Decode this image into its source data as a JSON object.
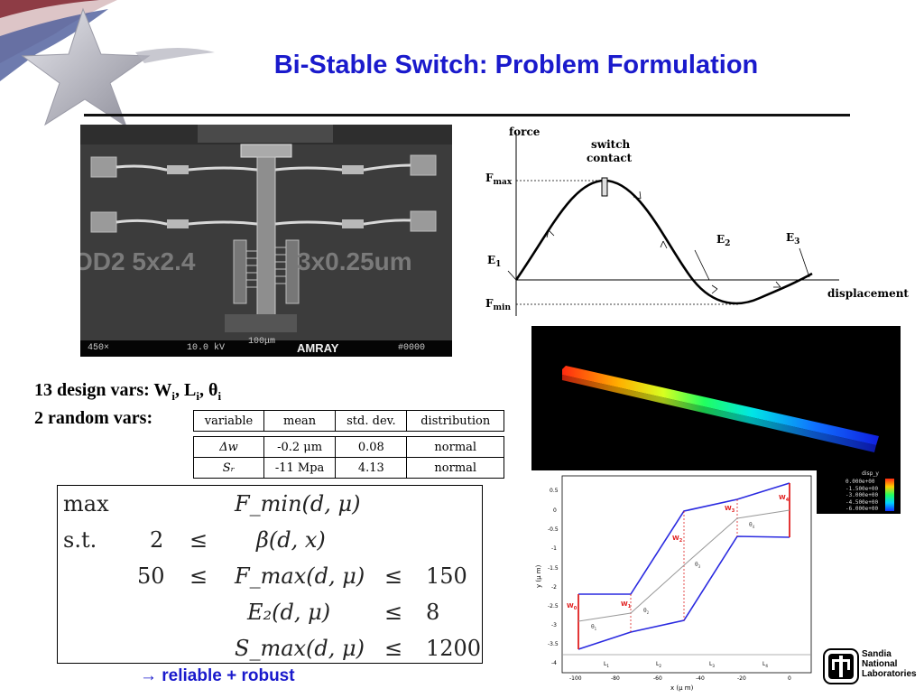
{
  "slide": {
    "title": "Bi-Stable Switch: Problem Formulation",
    "accent_color": "#1a1acc"
  },
  "sem_image": {
    "overlay_left": "OD2 5x2.4",
    "overlay_right": "3x0.25um",
    "magnification": "450×",
    "voltage": "10.0 kV",
    "scale": "100μm",
    "brand": "AMRAY",
    "image_id": "#0000"
  },
  "force_curve": {
    "y_label": "force",
    "x_label": "displacement",
    "switch_label_1": "switch",
    "switch_label_2": "contact",
    "fmax": "F",
    "fmax_sub": "max",
    "fmin": "F",
    "fmin_sub": "min",
    "e1": "E",
    "e1_sub": "1",
    "e2": "E",
    "e2_sub": "2",
    "e3": "E",
    "e3_sub": "3"
  },
  "design_vars": {
    "line1_text": "13 design vars: W",
    "line1_i1": "i",
    "line1_sep1": ", L",
    "line1_i2": "i",
    "line1_sep2": ", θ",
    "line1_i3": "i",
    "line2_text": "2 random vars:"
  },
  "random_table": {
    "headers": [
      "variable",
      "mean",
      "std. dev.",
      "distribution"
    ],
    "rows": [
      [
        "Δw",
        "-0.2 μm",
        "0.08",
        "normal"
      ],
      [
        "Sᵣ",
        "-11 Mpa",
        "4.13",
        "normal"
      ]
    ]
  },
  "optimization": {
    "max": "max",
    "st": "s.t.",
    "obj": "F_min(d, μ)",
    "c1_lo": "2",
    "c1_op": "≤",
    "c1_expr": "β(d, x)",
    "c2_lo": "50",
    "c2_op1": "≤",
    "c2_expr": "F_max(d, μ)",
    "c2_op2": "≤",
    "c2_hi": "150",
    "c3_expr": "E₂(d, μ)",
    "c3_op": "≤",
    "c3_hi": "8",
    "c4_expr": "S_max(d, μ)",
    "c4_op": "≤",
    "c4_hi": "1200"
  },
  "conclusion": {
    "arrow": "→",
    "text": "reliable + robust"
  },
  "fea_legend": {
    "title": "disp_y",
    "values": [
      "0.000e+00",
      "-1.500e+00",
      "-3.000e+00",
      "-4.500e+00",
      "-6.000e+00"
    ]
  },
  "geometry_plot": {
    "y_label": "y (μ m)",
    "x_label": "x (μ m)",
    "x_ticks": [
      "-100",
      "-80",
      "-60",
      "-40",
      "-20",
      "0"
    ],
    "y_ticks": [
      "0.5",
      "0",
      "-0.5",
      "-1",
      "-1.5",
      "-2",
      "-2.5",
      "-3",
      "-3.5",
      "-4"
    ],
    "w_labels": [
      "W",
      "W",
      "W",
      "W",
      "W"
    ],
    "w_subs": [
      "0",
      "1",
      "2",
      "3",
      "4"
    ],
    "theta_labels": [
      "θ",
      "θ",
      "θ",
      "θ"
    ],
    "theta_subs": [
      "1",
      "2",
      "3",
      "4"
    ],
    "l_labels": [
      "L",
      "L",
      "L",
      "L"
    ],
    "l_subs": [
      "1",
      "2",
      "3",
      "4"
    ]
  },
  "logo": {
    "line1": "Sandia",
    "line2": "National",
    "line3": "Laboratories"
  }
}
